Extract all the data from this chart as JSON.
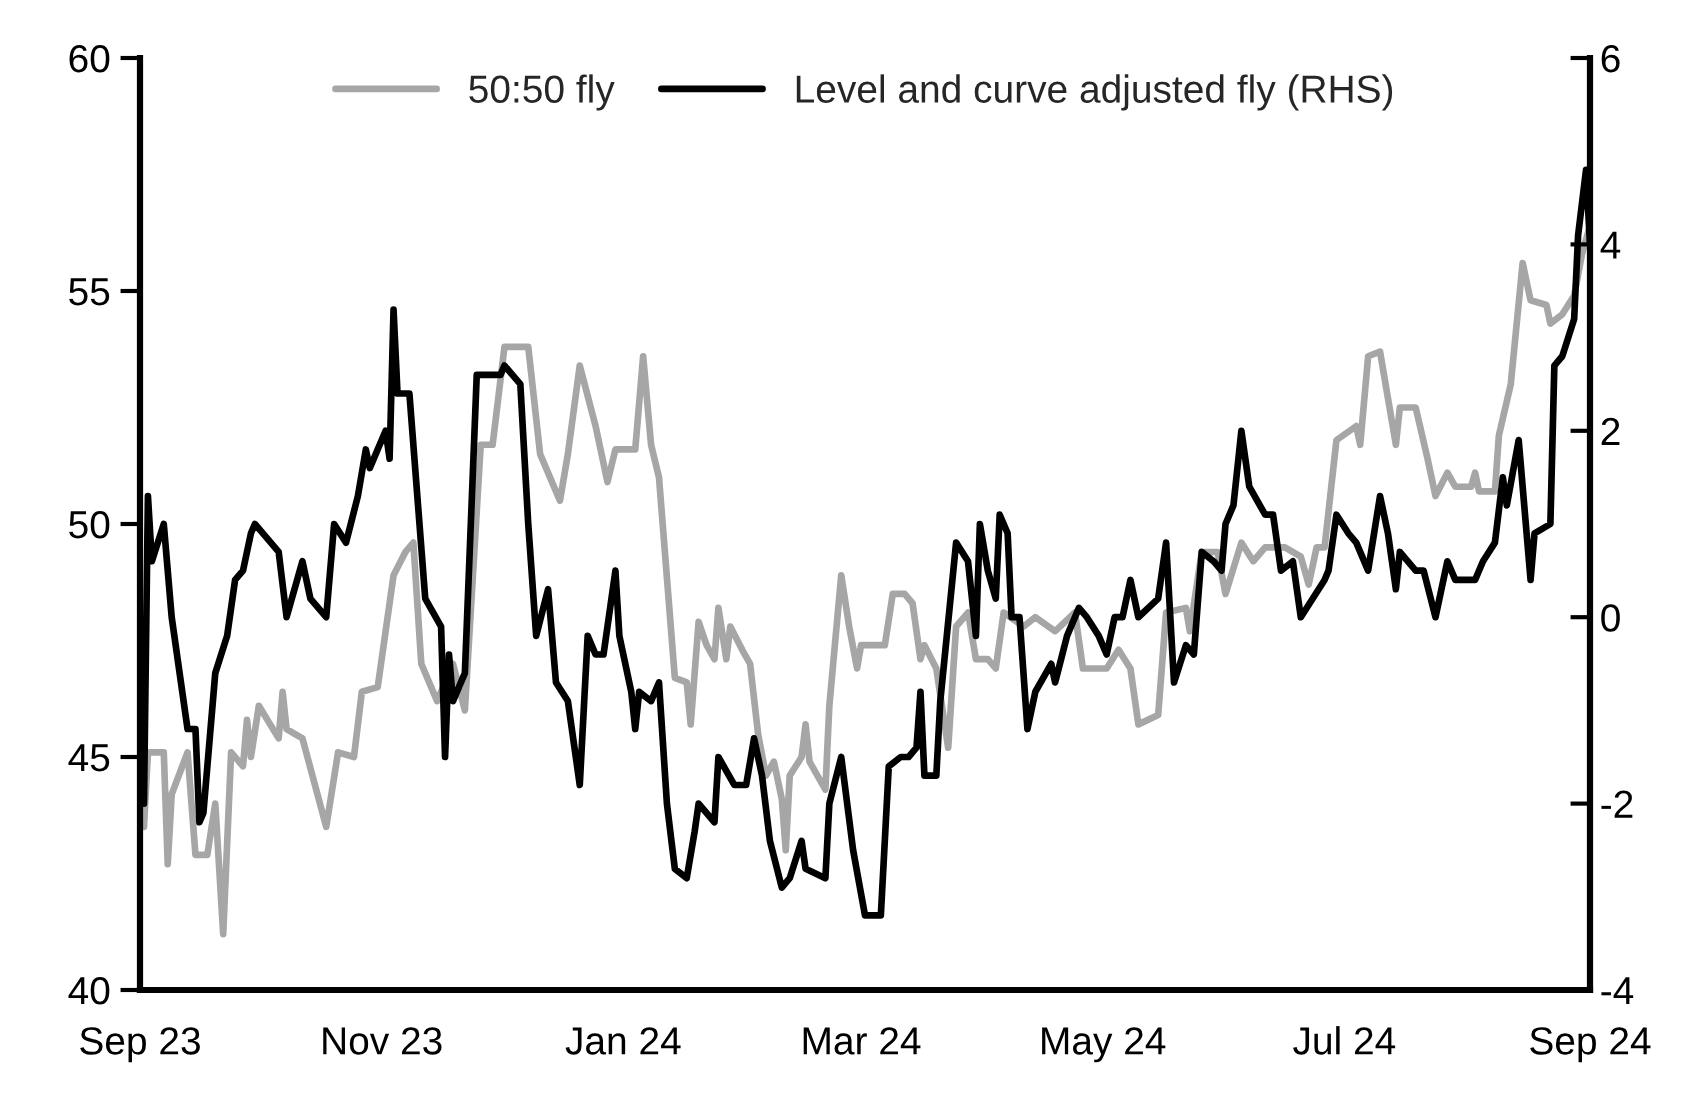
{
  "chart_data": {
    "type": "line",
    "xlim": [
      "2023-09-01",
      "2024-09-01"
    ],
    "xticks": [
      {
        "value": "2023-09-01",
        "label": "Sep 23"
      },
      {
        "value": "2023-11-01",
        "label": "Nov 23"
      },
      {
        "value": "2024-01-01",
        "label": "Jan 24"
      },
      {
        "value": "2024-03-01",
        "label": "Mar 24"
      },
      {
        "value": "2024-05-01",
        "label": "May 24"
      },
      {
        "value": "2024-07-01",
        "label": "Jul 24"
      },
      {
        "value": "2024-09-01",
        "label": "Sep 24"
      }
    ],
    "ylim": [
      40,
      60
    ],
    "yticks": [
      40,
      45,
      50,
      55,
      60
    ],
    "y2lim": [
      -4,
      6
    ],
    "y2ticks": [
      -4,
      -2,
      0,
      2,
      4,
      6
    ],
    "legend": "top",
    "grid": false,
    "marker": "none",
    "line_style": "solid",
    "series": [
      {
        "name": "50:50 fly",
        "color": "#a6a6a6",
        "x": [
          "2023-09-02",
          "2023-09-03",
          "2023-09-07",
          "2023-09-08",
          "2023-09-09",
          "2023-09-13",
          "2023-09-15",
          "2023-09-18",
          "2023-09-20",
          "2023-09-22",
          "2023-09-24",
          "2023-09-27",
          "2023-09-28",
          "2023-09-29",
          "2023-10-01",
          "2023-10-06",
          "2023-10-07",
          "2023-10-08",
          "2023-10-12",
          "2023-10-18",
          "2023-10-21",
          "2023-10-25",
          "2023-10-27",
          "2023-10-31",
          "2023-11-04",
          "2023-11-07",
          "2023-11-09",
          "2023-11-11",
          "2023-11-15",
          "2023-11-19",
          "2023-11-22",
          "2023-11-26",
          "2023-11-29",
          "2023-12-02",
          "2023-12-08",
          "2023-12-11",
          "2023-12-16",
          "2023-12-18",
          "2023-12-21",
          "2023-12-25",
          "2023-12-28",
          "2023-12-30",
          "2024-01-04",
          "2024-01-06",
          "2024-01-08",
          "2024-01-10",
          "2024-01-14",
          "2024-01-17",
          "2024-01-18",
          "2024-01-20",
          "2024-01-22",
          "2024-01-24",
          "2024-01-25",
          "2024-01-27",
          "2024-01-28",
          "2024-01-31",
          "2024-02-02",
          "2024-02-04",
          "2024-02-06",
          "2024-02-08",
          "2024-02-10",
          "2024-02-11",
          "2024-02-12",
          "2024-02-15",
          "2024-02-16",
          "2024-02-17",
          "2024-02-21",
          "2024-02-22",
          "2024-02-25",
          "2024-02-27",
          "2024-02-29",
          "2024-03-01",
          "2024-03-07",
          "2024-03-09",
          "2024-03-12",
          "2024-03-14",
          "2024-03-16",
          "2024-03-17",
          "2024-03-20",
          "2024-03-23",
          "2024-03-25",
          "2024-03-28",
          "2024-03-30",
          "2024-04-02",
          "2024-04-04",
          "2024-04-06",
          "2024-04-11",
          "2024-04-14",
          "2024-04-19",
          "2024-04-24",
          "2024-04-26",
          "2024-05-02",
          "2024-05-05",
          "2024-05-08",
          "2024-05-10",
          "2024-05-15",
          "2024-05-17",
          "2024-05-22",
          "2024-05-23",
          "2024-05-26",
          "2024-05-30",
          "2024-06-01",
          "2024-06-05",
          "2024-06-08",
          "2024-06-11",
          "2024-06-16",
          "2024-06-20",
          "2024-06-22",
          "2024-06-24",
          "2024-06-26",
          "2024-06-29",
          "2024-07-04",
          "2024-07-05",
          "2024-07-07",
          "2024-07-10",
          "2024-07-14",
          "2024-07-15",
          "2024-07-19",
          "2024-07-22",
          "2024-07-24",
          "2024-07-27",
          "2024-07-29",
          "2024-08-02",
          "2024-08-03",
          "2024-08-04",
          "2024-08-08",
          "2024-08-09",
          "2024-08-12",
          "2024-08-15",
          "2024-08-17",
          "2024-08-21",
          "2024-08-22",
          "2024-08-25",
          "2024-08-28",
          "2024-08-30",
          "2024-09-01"
        ],
        "values": [
          43.5,
          45.1,
          45.1,
          42.7,
          44.2,
          45.1,
          42.9,
          42.9,
          44.0,
          41.2,
          45.1,
          44.8,
          45.8,
          45.0,
          46.1,
          45.4,
          46.4,
          45.6,
          45.4,
          43.5,
          45.1,
          45.0,
          46.4,
          46.5,
          48.9,
          49.4,
          49.6,
          47.0,
          46.2,
          47.0,
          46.0,
          51.7,
          51.7,
          53.8,
          53.8,
          51.5,
          50.5,
          51.5,
          53.4,
          52.1,
          50.9,
          51.6,
          51.6,
          53.6,
          51.7,
          51.0,
          46.7,
          46.6,
          45.7,
          47.9,
          47.4,
          47.1,
          48.2,
          47.1,
          47.8,
          47.3,
          47.0,
          45.5,
          44.6,
          44.9,
          44.1,
          43.0,
          44.6,
          45.0,
          45.7,
          44.9,
          44.3,
          46.1,
          48.9,
          47.8,
          46.9,
          47.4,
          47.4,
          48.5,
          48.5,
          48.3,
          47.1,
          47.4,
          46.9,
          45.2,
          47.8,
          48.1,
          47.1,
          47.1,
          46.9,
          48.1,
          47.8,
          48.0,
          47.7,
          48.1,
          46.9,
          46.9,
          47.3,
          46.9,
          45.7,
          45.9,
          48.1,
          48.2,
          47.7,
          49.4,
          49.4,
          48.5,
          49.6,
          49.2,
          49.5,
          49.5,
          49.3,
          48.7,
          49.5,
          49.5,
          51.8,
          52.1,
          51.7,
          53.6,
          53.7,
          51.7,
          52.5,
          52.5,
          51.4,
          50.6,
          51.1,
          50.8,
          50.8,
          51.1,
          50.7,
          50.7,
          51.9,
          53.0,
          55.6,
          54.8,
          54.7,
          54.3,
          54.5,
          54.9,
          55.8,
          56.4
        ]
      },
      {
        "name": "Level and curve adjusted fly (RHS)",
        "color": "#000000",
        "axis": "y2",
        "x": [
          "2023-09-02",
          "2023-09-03",
          "2023-09-04",
          "2023-09-07",
          "2023-09-09",
          "2023-09-13",
          "2023-09-15",
          "2023-09-16",
          "2023-09-17",
          "2023-09-20",
          "2023-09-23",
          "2023-09-25",
          "2023-09-27",
          "2023-09-29",
          "2023-09-30",
          "2023-10-06",
          "2023-10-08",
          "2023-10-12",
          "2023-10-14",
          "2023-10-18",
          "2023-10-20",
          "2023-10-23",
          "2023-10-26",
          "2023-10-28",
          "2023-10-29",
          "2023-11-02",
          "2023-11-03",
          "2023-11-04",
          "2023-11-05",
          "2023-11-08",
          "2023-11-12",
          "2023-11-16",
          "2023-11-17",
          "2023-11-18",
          "2023-11-19",
          "2023-11-22",
          "2023-11-25",
          "2023-11-27",
          "2023-12-01",
          "2023-12-02",
          "2023-12-06",
          "2023-12-08",
          "2023-12-10",
          "2023-12-13",
          "2023-12-15",
          "2023-12-18",
          "2023-12-21",
          "2023-12-23",
          "2023-12-25",
          "2023-12-27",
          "2023-12-30",
          "2023-12-31",
          "2024-01-03",
          "2024-01-04",
          "2024-01-05",
          "2024-01-08",
          "2024-01-10",
          "2024-01-12",
          "2024-01-14",
          "2024-01-17",
          "2024-01-19",
          "2024-01-20",
          "2024-01-24",
          "2024-01-25",
          "2024-01-29",
          "2024-02-01",
          "2024-02-03",
          "2024-02-05",
          "2024-02-07",
          "2024-02-10",
          "2024-02-12",
          "2024-02-15",
          "2024-02-16",
          "2024-02-21",
          "2024-02-22",
          "2024-02-25",
          "2024-02-28",
          "2024-03-02",
          "2024-03-06",
          "2024-03-08",
          "2024-03-11",
          "2024-03-13",
          "2024-03-15",
          "2024-03-16",
          "2024-03-17",
          "2024-03-20",
          "2024-03-21",
          "2024-03-25",
          "2024-03-28",
          "2024-03-30",
          "2024-03-31",
          "2024-04-02",
          "2024-04-04",
          "2024-04-05",
          "2024-04-07",
          "2024-04-08",
          "2024-04-10",
          "2024-04-12",
          "2024-04-14",
          "2024-04-18",
          "2024-04-19",
          "2024-04-22",
          "2024-04-25",
          "2024-04-27",
          "2024-04-30",
          "2024-05-02",
          "2024-05-04",
          "2024-05-06",
          "2024-05-08",
          "2024-05-10",
          "2024-05-15",
          "2024-05-17",
          "2024-05-19",
          "2024-05-22",
          "2024-05-24",
          "2024-05-26",
          "2024-05-29",
          "2024-05-31",
          "2024-06-01",
          "2024-06-03",
          "2024-06-05",
          "2024-06-07",
          "2024-06-11",
          "2024-06-13",
          "2024-06-15",
          "2024-06-18",
          "2024-06-20",
          "2024-06-26",
          "2024-06-27",
          "2024-06-29",
          "2024-07-02",
          "2024-07-04",
          "2024-07-07",
          "2024-07-10",
          "2024-07-12",
          "2024-07-14",
          "2024-07-15",
          "2024-07-19",
          "2024-07-21",
          "2024-07-24",
          "2024-07-27",
          "2024-07-29",
          "2024-08-03",
          "2024-08-05",
          "2024-08-08",
          "2024-08-10",
          "2024-08-11",
          "2024-08-14",
          "2024-08-17",
          "2024-08-18",
          "2024-08-22",
          "2024-08-23",
          "2024-08-25",
          "2024-08-28",
          "2024-08-29",
          "2024-08-31",
          "2024-09-01"
        ],
        "values": [
          -2.0,
          1.3,
          0.6,
          1.0,
          0.0,
          -1.2,
          -1.2,
          -2.2,
          -2.1,
          -0.6,
          -0.2,
          0.4,
          0.5,
          0.9,
          1.0,
          0.7,
          0.0,
          0.6,
          0.2,
          0.0,
          1.0,
          0.8,
          1.3,
          1.8,
          1.6,
          2.0,
          1.7,
          3.3,
          2.4,
          2.4,
          0.2,
          -0.1,
          -1.5,
          -0.4,
          -0.9,
          -0.6,
          2.6,
          2.6,
          2.6,
          2.7,
          2.5,
          1.0,
          -0.2,
          0.3,
          -0.7,
          -0.9,
          -1.8,
          -0.2,
          -0.4,
          -0.4,
          0.5,
          -0.2,
          -0.8,
          -1.2,
          -0.8,
          -0.9,
          -0.7,
          -2.0,
          -2.7,
          -2.8,
          -2.3,
          -2.0,
          -2.2,
          -1.5,
          -1.8,
          -1.8,
          -1.3,
          -1.7,
          -2.4,
          -2.9,
          -2.8,
          -2.4,
          -2.7,
          -2.8,
          -2.0,
          -1.5,
          -2.5,
          -3.2,
          -3.2,
          -1.6,
          -1.5,
          -1.5,
          -1.4,
          -0.8,
          -1.7,
          -1.7,
          -0.9,
          0.8,
          0.6,
          -0.2,
          1.0,
          0.5,
          0.2,
          1.1,
          0.9,
          0.0,
          0.0,
          -1.2,
          -0.8,
          -0.5,
          -0.7,
          -0.2,
          0.1,
          0.0,
          -0.2,
          -0.4,
          0.0,
          0.0,
          0.4,
          0.0,
          0.2,
          0.8,
          -0.7,
          -0.3,
          -0.4,
          0.7,
          0.6,
          0.5,
          1.0,
          1.2,
          2.0,
          1.4,
          1.1,
          1.1,
          0.5,
          0.6,
          0.0,
          0.4,
          0.5,
          1.1,
          0.9,
          0.8,
          0.5,
          1.3,
          0.9,
          0.3,
          0.7,
          0.5,
          0.5,
          0.0,
          0.6,
          0.4,
          0.4,
          0.6,
          0.8,
          1.5,
          1.2,
          1.9,
          0.4,
          0.9,
          1.0,
          2.7,
          2.8,
          3.2,
          4.1,
          4.8,
          4.0
        ]
      }
    ]
  }
}
